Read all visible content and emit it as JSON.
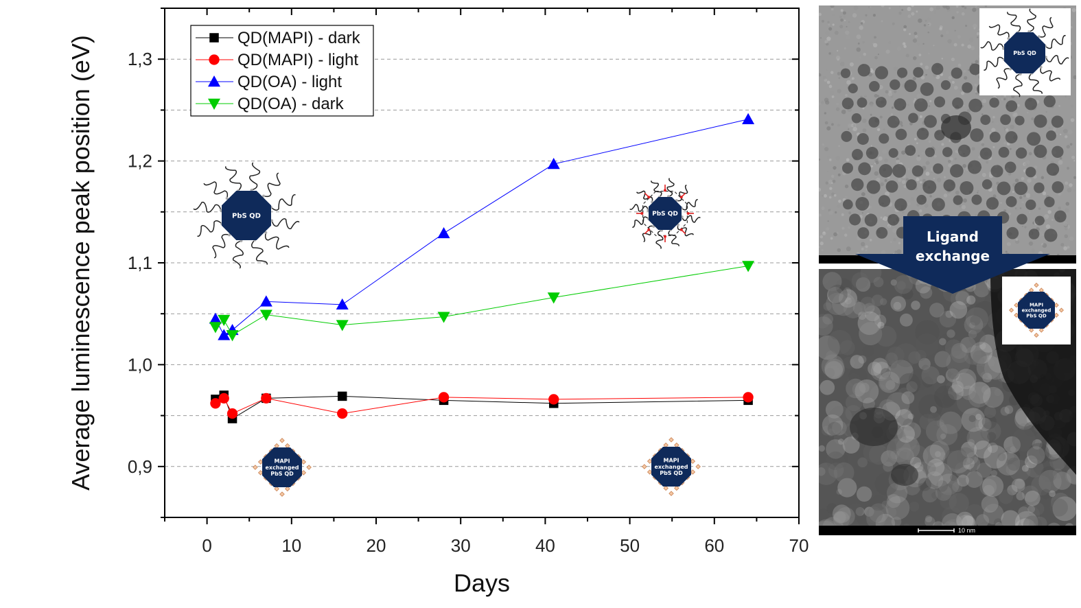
{
  "chart_data": {
    "type": "line",
    "xlabel": "Days",
    "ylabel": "Average luminescence peak position (eV)",
    "xlim": [
      -5,
      70
    ],
    "ylim": [
      0.85,
      1.35
    ],
    "x_ticks": [
      "0",
      "10",
      "20",
      "30",
      "40",
      "50",
      "60",
      "70"
    ],
    "y_ticks": [
      "0,9",
      "1,0",
      "1,1",
      "1,2",
      "1,3"
    ],
    "grid": "horizontal dashed",
    "legend_position": "top-left",
    "series": [
      {
        "name": "QD(MAPI) - dark",
        "marker": "square",
        "color": "#000000",
        "x": [
          1,
          2,
          3,
          7,
          16,
          28,
          41,
          64
        ],
        "y": [
          0.966,
          0.97,
          0.947,
          0.967,
          0.969,
          0.965,
          0.962,
          0.965
        ]
      },
      {
        "name": "QD(MAPI) - light",
        "marker": "circle",
        "color": "#ff0000",
        "x": [
          1,
          2,
          3,
          7,
          16,
          28,
          41,
          64
        ],
        "y": [
          0.962,
          0.967,
          0.952,
          0.967,
          0.952,
          0.968,
          0.966,
          0.968
        ]
      },
      {
        "name": "QD(OA) - light",
        "marker": "triangle-up",
        "color": "#0000ff",
        "x": [
          1,
          2,
          3,
          7,
          16,
          28,
          41,
          64
        ],
        "y": [
          1.045,
          1.029,
          1.034,
          1.062,
          1.059,
          1.129,
          1.197,
          1.241
        ]
      },
      {
        "name": "QD(OA) - dark",
        "marker": "triangle-down",
        "color": "#00cc00",
        "x": [
          1,
          2,
          3,
          7,
          16,
          28,
          41,
          64
        ],
        "y": [
          1.037,
          1.044,
          1.029,
          1.049,
          1.039,
          1.047,
          1.066,
          1.097
        ]
      }
    ]
  },
  "illustrations": {
    "oa_label": "PbS QD",
    "mapi_label_lines": [
      "MAPI",
      "exchanged",
      "PbS QD"
    ],
    "arrow_label_lines": [
      "Ligand",
      "exchange"
    ],
    "scale_bar_label": "10 nm"
  },
  "colors": {
    "qd_core": "#0f2a5a",
    "mapi_diamond": "#f3c7a4",
    "arrow": "#0f2a5a"
  }
}
